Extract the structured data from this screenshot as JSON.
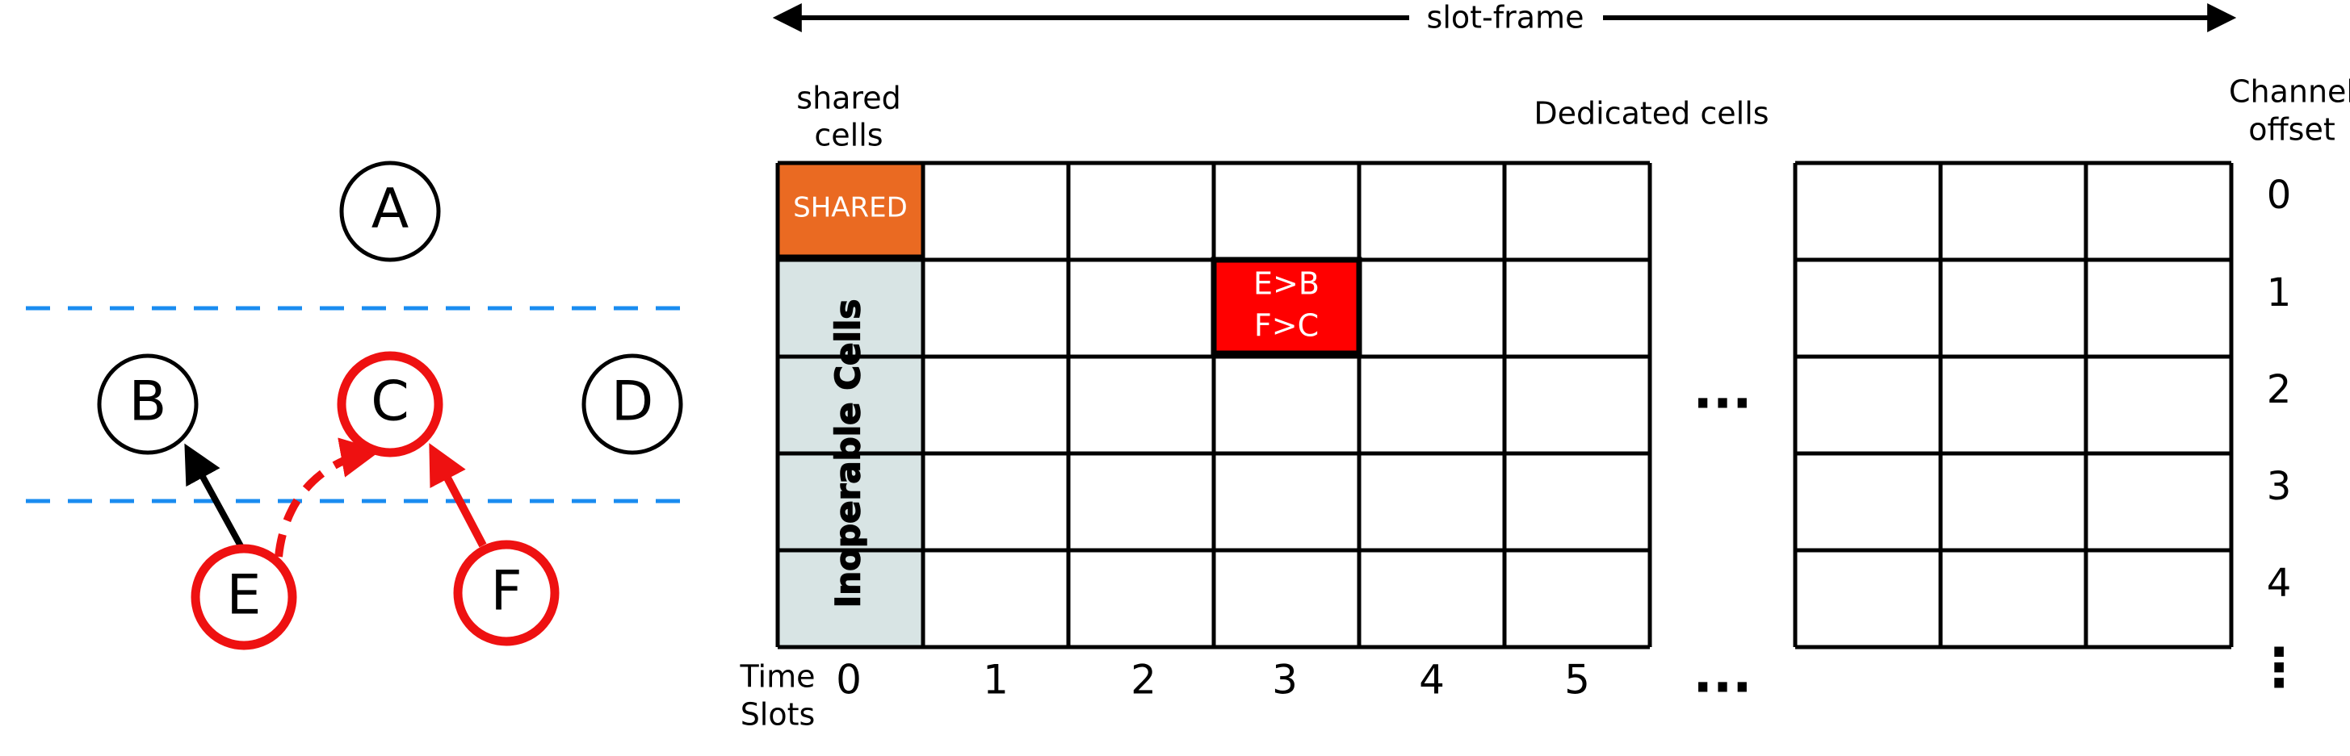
{
  "topology": {
    "nodes": [
      {
        "id": "node-a",
        "label": "A",
        "highlight": false
      },
      {
        "id": "node-b",
        "label": "B",
        "highlight": false
      },
      {
        "id": "node-c",
        "label": "C",
        "highlight": true
      },
      {
        "id": "node-d",
        "label": "D",
        "highlight": false
      },
      {
        "id": "node-e",
        "label": "E",
        "highlight": true
      },
      {
        "id": "node-f",
        "label": "F",
        "highlight": true
      }
    ]
  },
  "slotframe": {
    "title": "slot-frame",
    "shared_header_line1": "shared",
    "shared_header_line2": "cells",
    "dedicated_header": "Dedicated cells",
    "channel_header_line1": "Channel",
    "channel_header_line2": "offset",
    "shared_cell_label": "SHARED",
    "inoperable_label": "Inoperable Cells",
    "scheduled_cell_line1": "E>B",
    "scheduled_cell_line2": "F>C",
    "time_label_line1": "Time",
    "time_label_line2": "Slots",
    "time_slots": [
      "0",
      "1",
      "2",
      "3",
      "4",
      "5"
    ],
    "channel_offsets": [
      "0",
      "1",
      "2",
      "3",
      "4"
    ],
    "ellipsis": "...",
    "vertical_ellipsis": "⋮"
  },
  "colors": {
    "shared": "#ea6a22",
    "inoperable": "#d8e4e4",
    "scheduled": "#ff0000",
    "highlight": "#ee1111",
    "boundary": "#1a8cf0",
    "grid": "#000000"
  }
}
